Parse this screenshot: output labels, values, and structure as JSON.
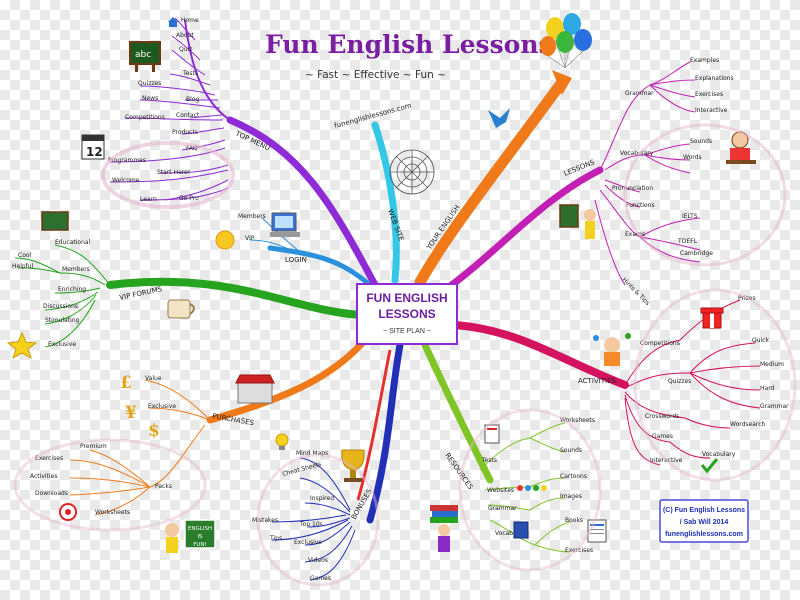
{
  "title": "Fun English Lessons",
  "subtitle": "~ Fast ~ Effective ~ Fun ~",
  "center": {
    "line1": "FUN ENGLISH",
    "line2": "LESSONS",
    "line3": "~ SITE PLAN ~"
  },
  "website": {
    "label": "WEB SITE",
    "url": "funenglishlessons.com"
  },
  "top_menu": {
    "label": "TOP MENU",
    "items": [
      "Home",
      "About",
      "Quiz",
      "Tests",
      "Quizzes",
      "Blog",
      "News",
      "Contact",
      "Competitions",
      "Products",
      "FAQ",
      "Programmes",
      "Welcome",
      "Start Here!",
      "Learn",
      "Go Pro"
    ],
    "calendar_day": "12"
  },
  "login": {
    "label": "LOGIN",
    "items": [
      "Members",
      "VIP"
    ]
  },
  "your_english": {
    "label": "YOUR ENGLISH"
  },
  "vip_forums": {
    "label": "VIP FORUMS",
    "items": [
      "Educational",
      "Members",
      "Enriching",
      "Discussions",
      "Stimulating",
      "Exclusive",
      "Cool",
      "Helpful"
    ]
  },
  "lessons": {
    "label": "LESSONS",
    "items": [
      "Grammar",
      "Examples",
      "Explanations",
      "Exercises",
      "Interactive",
      "Vocabulary",
      "Sounds",
      "Words",
      "Pronunciation",
      "Functions",
      "Exams",
      "IELTS",
      "Cambridge",
      "TOEFL",
      "Hints & Tips"
    ]
  },
  "activities": {
    "label": "ACTIVITIES",
    "items": [
      "Competitions",
      "Prizes",
      "Quizzes",
      "Crosswords",
      "Games",
      "Interactive",
      "Quick",
      "Medium",
      "Hard",
      "Wordsearch",
      "Grammar",
      "Vocabulary"
    ]
  },
  "purchases": {
    "label": "PURCHASES",
    "items": [
      "Value",
      "Exclusive",
      "Packs",
      "Exercises",
      "Premium",
      "Activities",
      "Downloads",
      "Worksheets"
    ]
  },
  "bonuses": {
    "label": "BONUSES",
    "items": [
      "Mind Maps",
      "Cheat Sheets",
      "Inspired",
      "Top 10s",
      "Exclusive",
      "Videos",
      "Games",
      "Tips",
      "Mistakes"
    ]
  },
  "resources": {
    "label": "RESOURCES",
    "items": [
      "Tests",
      "Websites",
      "Grammar",
      "Vocabulary",
      "Worksheets",
      "Sounds",
      "Cartoons",
      "Books",
      "Images",
      "Exercises"
    ]
  },
  "copyright": {
    "line1": "(C) Fun English Lessons",
    "line2": "/ Sab Will 2014",
    "line3": "funenglishlessons.com"
  },
  "sign_text": {
    "line1": "ENGLISH",
    "line2": "IS",
    "line3": "FUN!"
  },
  "colors": {
    "purple": "#8e2ad6",
    "orange": "#f07a1a",
    "magenta": "#c41fb5",
    "green": "#26a41f",
    "crimson": "#d4125e",
    "navy": "#2230b8",
    "blue": "#2a8fdc",
    "teal": "#21b8c9",
    "lime": "#7fc526",
    "cyan": "#35c7e6",
    "gold": "#f0a51f"
  }
}
